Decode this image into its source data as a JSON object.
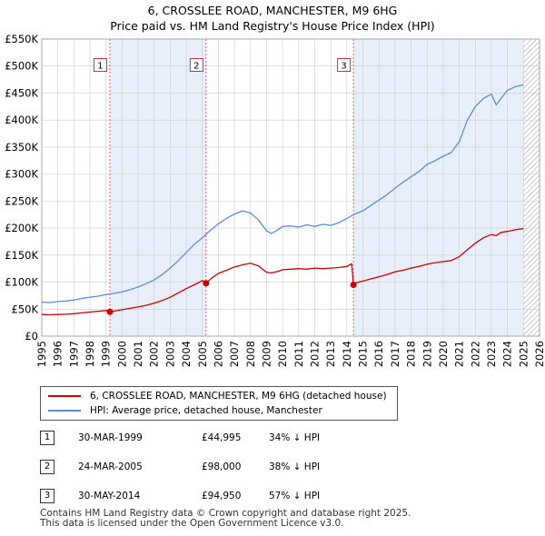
{
  "chart_data": {
    "type": "line",
    "title": "6, CROSSLEE ROAD, MANCHESTER, M9 6HG",
    "subtitle": "Price paid vs. HM Land Registry's House Price Index (HPI)",
    "xlim": [
      1995,
      2026
    ],
    "ylim": [
      0,
      550000
    ],
    "y_ticks": [
      0,
      50000,
      100000,
      150000,
      200000,
      250000,
      300000,
      350000,
      400000,
      450000,
      500000,
      550000
    ],
    "y_tick_labels": [
      "£0",
      "£50K",
      "£100K",
      "£150K",
      "£200K",
      "£250K",
      "£300K",
      "£350K",
      "£400K",
      "£450K",
      "£500K",
      "£550K"
    ],
    "x_ticks": [
      1995,
      1996,
      1997,
      1998,
      1999,
      2000,
      2001,
      2002,
      2003,
      2004,
      2005,
      2006,
      2007,
      2008,
      2009,
      2010,
      2011,
      2012,
      2013,
      2014,
      2015,
      2016,
      2017,
      2018,
      2019,
      2020,
      2021,
      2022,
      2023,
      2024,
      2025,
      2026
    ],
    "x_tick_labels": [
      "1995",
      "1996",
      "1997",
      "1998",
      "1999",
      "2000",
      "2001",
      "2002",
      "2003",
      "2004",
      "2005",
      "2006",
      "2007",
      "2008",
      "2009",
      "2010",
      "2011",
      "2012",
      "2013",
      "2014",
      "2015",
      "2016",
      "2017",
      "2018",
      "2019",
      "2020",
      "2021",
      "2022",
      "2023",
      "2024",
      "2025",
      "2026"
    ],
    "shaded_ranges": [
      [
        1999.24,
        2005.23
      ],
      [
        2014.41,
        2025.0
      ]
    ],
    "projection_start": 2025.0,
    "series": [
      {
        "name": "6, CROSSLEE ROAD, MANCHESTER, M9 6HG (detached house)",
        "color": "#cc0000",
        "x": [
          1995.0,
          1995.5,
          1996.0,
          1996.5,
          1997.0,
          1997.5,
          1998.0,
          1998.5,
          1999.0,
          1999.24,
          1999.6,
          2000.0,
          2000.5,
          2001.0,
          2001.5,
          2002.0,
          2002.5,
          2003.0,
          2003.5,
          2004.0,
          2004.5,
          2005.0,
          2005.23,
          2005.6,
          2006.0,
          2006.5,
          2007.0,
          2007.5,
          2008.0,
          2008.5,
          2009.0,
          2009.3,
          2009.7,
          2010.0,
          2010.5,
          2011.0,
          2011.5,
          2012.0,
          2012.5,
          2013.0,
          2013.5,
          2014.0,
          2014.3,
          2014.41,
          2014.6,
          2015.0,
          2015.5,
          2016.0,
          2016.5,
          2017.0,
          2017.5,
          2018.0,
          2018.5,
          2019.0,
          2019.5,
          2020.0,
          2020.5,
          2021.0,
          2021.5,
          2022.0,
          2022.5,
          2023.0,
          2023.3,
          2023.6,
          2024.0,
          2024.5,
          2025.0
        ],
        "values": [
          40000,
          39500,
          40000,
          40500,
          41500,
          43000,
          44500,
          46000,
          47500,
          44995,
          47000,
          49000,
          51500,
          54000,
          57000,
          61000,
          66000,
          72000,
          80000,
          88000,
          95000,
          103000,
          98000,
          108000,
          116000,
          122000,
          128000,
          132000,
          135000,
          130000,
          118000,
          117000,
          120000,
          123000,
          124000,
          125000,
          124000,
          126000,
          125000,
          126000,
          127000,
          129000,
          134000,
          94950,
          99000,
          102000,
          106000,
          110000,
          114000,
          119000,
          122000,
          126000,
          129000,
          133000,
          136000,
          138000,
          140000,
          147000,
          160000,
          172000,
          182000,
          188000,
          186000,
          192000,
          194000,
          197000,
          199000
        ]
      },
      {
        "name": "HPI: Average price, detached house, Manchester",
        "color": "#5b8ed4",
        "x": [
          1995.0,
          1995.5,
          1996.0,
          1996.5,
          1997.0,
          1997.5,
          1998.0,
          1998.5,
          1999.0,
          1999.5,
          2000.0,
          2000.5,
          2001.0,
          2001.5,
          2002.0,
          2002.5,
          2003.0,
          2003.5,
          2004.0,
          2004.5,
          2005.0,
          2005.5,
          2006.0,
          2006.5,
          2007.0,
          2007.5,
          2008.0,
          2008.5,
          2009.0,
          2009.3,
          2009.7,
          2010.0,
          2010.5,
          2011.0,
          2011.5,
          2012.0,
          2012.5,
          2013.0,
          2013.5,
          2014.0,
          2014.5,
          2015.0,
          2015.5,
          2016.0,
          2016.5,
          2017.0,
          2017.5,
          2018.0,
          2018.5,
          2019.0,
          2019.5,
          2020.0,
          2020.5,
          2021.0,
          2021.5,
          2022.0,
          2022.5,
          2023.0,
          2023.3,
          2023.6,
          2024.0,
          2024.5,
          2025.0
        ],
        "values": [
          63000,
          62000,
          64000,
          65000,
          67000,
          70000,
          72000,
          74000,
          77000,
          79000,
          82000,
          86000,
          91000,
          97000,
          104000,
          114000,
          126000,
          140000,
          155000,
          170000,
          182000,
          196000,
          208000,
          218000,
          226000,
          232000,
          228000,
          215000,
          195000,
          190000,
          197000,
          203000,
          204000,
          202000,
          206000,
          203000,
          207000,
          205000,
          210000,
          218000,
          226000,
          232000,
          242000,
          252000,
          262000,
          274000,
          285000,
          295000,
          305000,
          318000,
          325000,
          333000,
          340000,
          360000,
          400000,
          425000,
          440000,
          448000,
          428000,
          440000,
          455000,
          462000,
          465000
        ]
      }
    ],
    "markers": [
      {
        "label": "1",
        "x": 1999.24,
        "value": 44995
      },
      {
        "label": "2",
        "x": 2005.23,
        "value": 98000
      },
      {
        "label": "3",
        "x": 2014.41,
        "value": 94950
      }
    ]
  },
  "legend": {
    "property": "6, CROSSLEE ROAD, MANCHESTER, M9 6HG (detached house)",
    "hpi": "HPI: Average price, detached house, Manchester"
  },
  "sales": [
    {
      "num": "1",
      "date": "30-MAR-1999",
      "price": "£44,995",
      "hpi": "34% ↓ HPI"
    },
    {
      "num": "2",
      "date": "24-MAR-2005",
      "price": "£98,000",
      "hpi": "38% ↓ HPI"
    },
    {
      "num": "3",
      "date": "30-MAY-2014",
      "price": "£94,950",
      "hpi": "57% ↓ HPI"
    }
  ],
  "footer": {
    "line1": "Contains HM Land Registry data © Crown copyright and database right 2025.",
    "line2": "This data is licensed under the Open Government Licence v3.0."
  },
  "colors": {
    "property": "#cc0000",
    "hpi": "#5b8ed4",
    "shade": "#e8eefa",
    "grid": "#cccccc"
  }
}
